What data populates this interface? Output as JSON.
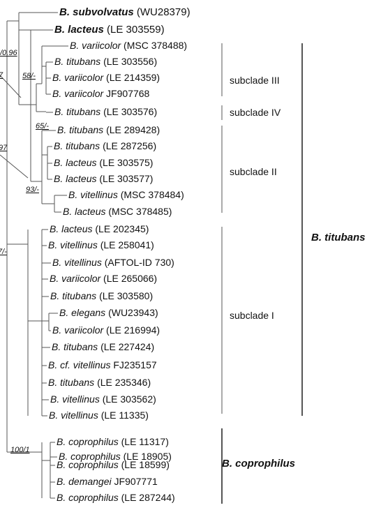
{
  "tree": {
    "taxa": [
      {
        "id": "subvolvatus",
        "genus": "B.",
        "species": "subvolvatus",
        "voucher": "(WU28379)",
        "bold": true
      },
      {
        "id": "lacteus_559",
        "genus": "B.",
        "species": "lacteus",
        "voucher": "(LE 303559)",
        "bold": true
      },
      {
        "id": "variicolor_488",
        "genus": "B.",
        "species": "variicolor",
        "voucher": "(MSC 378488)",
        "bold": false
      },
      {
        "id": "titubans_556",
        "genus": "B.",
        "species": "titubans",
        "voucher": "(LE 303556)",
        "bold": false
      },
      {
        "id": "variicolor_359",
        "genus": "B.",
        "species": "variicolor",
        "voucher": "(LE 214359)",
        "bold": false
      },
      {
        "id": "variicolor_JF768",
        "genus": "B.",
        "species": "variicolor",
        "voucher": "JF907768",
        "bold": false
      },
      {
        "id": "titubans_576",
        "genus": "B.",
        "species": "titubans",
        "voucher": "(LE 303576)",
        "bold": false
      },
      {
        "id": "titubans_428",
        "genus": "B.",
        "species": "titubans",
        "voucher": "(LE 289428)",
        "bold": false
      },
      {
        "id": "titubans_256",
        "genus": "B.",
        "species": "titubans",
        "voucher": "(LE 287256)",
        "bold": false
      },
      {
        "id": "lacteus_575",
        "genus": "B.",
        "species": "lacteus",
        "voucher": "(LE 303575)",
        "bold": false
      },
      {
        "id": "lacteus_577",
        "genus": "B.",
        "species": "lacteus",
        "voucher": "(LE 303577)",
        "bold": false
      },
      {
        "id": "vitellinus_484",
        "genus": "B.",
        "species": "vitellinus",
        "voucher": "(MSC 378484)",
        "bold": false
      },
      {
        "id": "lacteus_485",
        "genus": "B.",
        "species": "lacteus",
        "voucher": "(MSC 378485)",
        "bold": false
      },
      {
        "id": "lacteus_345",
        "genus": "B.",
        "species": "lacteus",
        "voucher": "(LE 202345)",
        "bold": false
      },
      {
        "id": "vitellinus_041",
        "genus": "B.",
        "species": "vitellinus",
        "voucher": "(LE 258041)",
        "bold": false
      },
      {
        "id": "vitellinus_aftol",
        "genus": "B.",
        "species": "vitellinus",
        "voucher": "(AFTOL-ID 730)",
        "bold": false
      },
      {
        "id": "variicolor_066",
        "genus": "B.",
        "species": "variicolor",
        "voucher": "(LE 265066)",
        "bold": false
      },
      {
        "id": "titubans_580",
        "genus": "B.",
        "species": "titubans",
        "voucher": "(LE 303580)",
        "bold": false
      },
      {
        "id": "elegans",
        "genus": "B.",
        "species": "elegans",
        "voucher": "(WU23943)",
        "bold": false
      },
      {
        "id": "variicolor_994",
        "genus": "B.",
        "species": "variicolor",
        "voucher": "(LE 216994)",
        "bold": false
      },
      {
        "id": "titubans_424",
        "genus": "B.",
        "species": "titubans",
        "voucher": "(LE 227424)",
        "bold": false
      },
      {
        "id": "cf_vitellinus",
        "genus": "B.",
        "species": "cf. vitellinus",
        "voucher": "FJ235157",
        "bold": false
      },
      {
        "id": "titubans_346",
        "genus": "B.",
        "species": "titubans",
        "voucher": "(LE 235346)",
        "bold": false
      },
      {
        "id": "vitellinus_562",
        "genus": "B.",
        "species": "vitellinus",
        "voucher": "(LE 303562)",
        "bold": false
      },
      {
        "id": "vitellinus_335",
        "genus": "B.",
        "species": "vitellinus",
        "voucher": "(LE 11335)",
        "bold": false
      },
      {
        "id": "coprophilus_317",
        "genus": "B.",
        "species": "coprophilus",
        "voucher": "(LE 11317)",
        "bold": false
      },
      {
        "id": "coprophilus_905",
        "genus": "B.",
        "species": "coprophilus",
        "voucher": "(LE 18905)",
        "bold": false
      },
      {
        "id": "coprophilus_599",
        "genus": "B.",
        "species": "coprophilus",
        "voucher": "(LE 18599)",
        "bold": false
      },
      {
        "id": "demangei",
        "genus": "B.",
        "species": "demangei",
        "voucher": "JF907771",
        "bold": false
      },
      {
        "id": "coprophilus_244",
        "genus": "B.",
        "species": "coprophilus",
        "voucher": "(LE 287244)",
        "bold": false
      }
    ],
    "support_values": [
      {
        "id": "s_root_top",
        "text": "0/0.96"
      },
      {
        "id": "s_58",
        "text": "58/-"
      },
      {
        "id": "s_7",
        "text": "7"
      },
      {
        "id": "s_65",
        "text": "65/-"
      },
      {
        "id": "s_97",
        "text": "97"
      },
      {
        "id": "s_93",
        "text": "93/-"
      },
      {
        "id": "s_7dash",
        "text": "7/-"
      },
      {
        "id": "s_100",
        "text": "100/1"
      }
    ],
    "subclades": [
      {
        "id": "sub_III",
        "label": "subclade III"
      },
      {
        "id": "sub_IV",
        "label": "subclade IV"
      },
      {
        "id": "sub_II",
        "label": "subclade II"
      },
      {
        "id": "sub_I",
        "label": "subclade I"
      }
    ],
    "clades": [
      {
        "id": "clade_titubans",
        "label": "B. titubans"
      },
      {
        "id": "clade_coprophilus",
        "label": "B. coprophilus"
      }
    ],
    "line_color": "#555555"
  }
}
